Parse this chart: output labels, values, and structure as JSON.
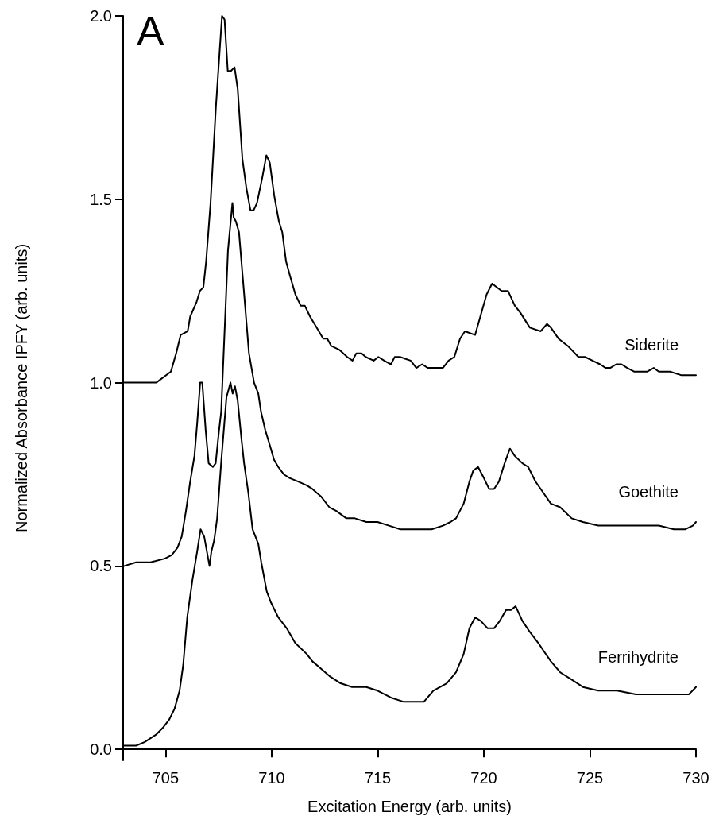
{
  "chart_data": {
    "type": "line",
    "title": "A",
    "xlabel": "Excitation Energy (arb. units)",
    "ylabel": "Normalized Absorbance IPFY (arb. units)",
    "xlim": [
      703,
      730
    ],
    "ylim": [
      -0.03,
      2.0
    ],
    "xticks": [
      705,
      710,
      715,
      720,
      725,
      730
    ],
    "yticks": [
      {
        "value": 0,
        "label": "0.0"
      },
      0.5,
      {
        "value": 1,
        "label": "1.0"
      },
      1.5,
      {
        "value": 2,
        "label": "2.0"
      }
    ],
    "series": [
      {
        "name": "Siderite",
        "color": "#000000",
        "x": [
          703.06,
          704.56,
          705.25,
          705.5,
          705.71,
          706.04,
          706.16,
          706.46,
          706.62,
          706.78,
          706.91,
          707.12,
          707.37,
          707.66,
          707.78,
          707.93,
          708.08,
          708.25,
          708.4,
          708.62,
          708.81,
          709.0,
          709.15,
          709.31,
          709.56,
          709.75,
          709.91,
          710.12,
          710.34,
          710.5,
          710.68,
          710.87,
          711.12,
          711.37,
          711.56,
          711.81,
          712.12,
          712.43,
          712.62,
          712.81,
          713.18,
          713.56,
          713.81,
          713.99,
          714.24,
          714.43,
          714.81,
          715.03,
          715.3,
          715.62,
          715.8,
          716.05,
          716.55,
          716.82,
          717.09,
          717.36,
          717.62,
          717.86,
          718.07,
          718.34,
          718.61,
          718.88,
          719.11,
          719.59,
          720.13,
          720.39,
          720.84,
          721.14,
          721.46,
          721.73,
          722.17,
          722.68,
          722.98,
          723.16,
          723.52,
          723.96,
          724.46,
          724.77,
          725.12,
          725.48,
          725.74,
          725.96,
          726.24,
          726.49,
          726.76,
          727.08,
          727.35,
          727.71,
          728.01,
          728.25,
          728.78,
          729.32,
          729.67,
          730.0
        ],
        "values": [
          1.0,
          1.0,
          1.03,
          1.08,
          1.13,
          1.14,
          1.18,
          1.22,
          1.25,
          1.26,
          1.33,
          1.49,
          1.75,
          2.0,
          1.99,
          1.85,
          1.85,
          1.86,
          1.8,
          1.61,
          1.53,
          1.47,
          1.47,
          1.49,
          1.56,
          1.62,
          1.6,
          1.51,
          1.44,
          1.41,
          1.33,
          1.29,
          1.24,
          1.21,
          1.21,
          1.18,
          1.15,
          1.12,
          1.12,
          1.1,
          1.09,
          1.07,
          1.06,
          1.08,
          1.08,
          1.07,
          1.06,
          1.07,
          1.06,
          1.05,
          1.07,
          1.07,
          1.06,
          1.04,
          1.05,
          1.04,
          1.04,
          1.04,
          1.04,
          1.06,
          1.07,
          1.12,
          1.14,
          1.13,
          1.24,
          1.27,
          1.25,
          1.25,
          1.21,
          1.19,
          1.15,
          1.14,
          1.16,
          1.15,
          1.12,
          1.1,
          1.07,
          1.07,
          1.06,
          1.05,
          1.04,
          1.04,
          1.05,
          1.05,
          1.04,
          1.03,
          1.03,
          1.03,
          1.04,
          1.03,
          1.03,
          1.02,
          1.02,
          1.02
        ]
      },
      {
        "name": "Goethite",
        "color": "#000000",
        "x": [
          703.05,
          703.61,
          704.29,
          704.96,
          705.29,
          705.56,
          705.76,
          705.96,
          706.16,
          706.36,
          706.49,
          706.63,
          706.73,
          706.89,
          707.03,
          707.23,
          707.36,
          707.52,
          707.62,
          707.81,
          707.94,
          708.15,
          708.21,
          708.31,
          708.46,
          708.69,
          708.93,
          709.17,
          709.37,
          709.5,
          709.7,
          709.91,
          710.11,
          710.31,
          710.57,
          710.84,
          711.25,
          711.65,
          711.92,
          712.32,
          712.72,
          713.05,
          713.52,
          713.92,
          714.46,
          714.99,
          715.53,
          716.07,
          716.47,
          717.0,
          717.54,
          718.07,
          718.43,
          718.69,
          719.05,
          719.32,
          719.5,
          719.73,
          720.0,
          720.25,
          720.48,
          720.71,
          720.98,
          721.23,
          721.46,
          721.82,
          722.09,
          722.44,
          722.8,
          723.16,
          723.6,
          724.14,
          724.67,
          725.39,
          726.1,
          726.82,
          727.53,
          728.25,
          728.96,
          729.5,
          729.85,
          730.0
        ],
        "values": [
          0.5,
          0.51,
          0.51,
          0.52,
          0.53,
          0.55,
          0.58,
          0.65,
          0.73,
          0.8,
          0.89,
          1.0,
          1.0,
          0.87,
          0.78,
          0.77,
          0.78,
          0.87,
          0.92,
          1.18,
          1.36,
          1.49,
          1.45,
          1.44,
          1.41,
          1.25,
          1.08,
          1.0,
          0.97,
          0.92,
          0.87,
          0.83,
          0.79,
          0.77,
          0.75,
          0.74,
          0.73,
          0.72,
          0.71,
          0.69,
          0.66,
          0.65,
          0.63,
          0.63,
          0.62,
          0.62,
          0.61,
          0.6,
          0.6,
          0.6,
          0.6,
          0.61,
          0.62,
          0.63,
          0.67,
          0.73,
          0.76,
          0.77,
          0.74,
          0.71,
          0.71,
          0.73,
          0.78,
          0.82,
          0.8,
          0.78,
          0.77,
          0.73,
          0.7,
          0.67,
          0.66,
          0.63,
          0.62,
          0.61,
          0.61,
          0.61,
          0.61,
          0.61,
          0.6,
          0.6,
          0.61,
          0.62
        ]
      },
      {
        "name": "Ferrihydrite",
        "color": "#000000",
        "x": [
          703.05,
          703.61,
          704.02,
          704.55,
          704.89,
          705.16,
          705.42,
          705.66,
          705.83,
          706.02,
          706.26,
          706.49,
          706.65,
          706.82,
          707.07,
          707.16,
          707.29,
          707.43,
          707.63,
          707.87,
          708.06,
          708.16,
          708.27,
          708.4,
          708.57,
          708.7,
          708.9,
          709.1,
          709.37,
          709.51,
          709.77,
          709.97,
          710.31,
          710.71,
          711.11,
          711.65,
          711.92,
          712.32,
          712.72,
          713.25,
          713.79,
          714.46,
          714.99,
          715.67,
          716.2,
          716.87,
          717.18,
          717.62,
          718.25,
          718.69,
          719.05,
          719.32,
          719.59,
          719.86,
          720.18,
          720.48,
          720.75,
          721.05,
          721.28,
          721.5,
          721.82,
          722.17,
          722.57,
          722.8,
          723.16,
          723.6,
          724.14,
          724.67,
          725.39,
          726.28,
          727.17,
          728.07,
          728.96,
          729.67,
          730.0
        ],
        "values": [
          0.01,
          0.01,
          0.02,
          0.04,
          0.06,
          0.08,
          0.11,
          0.16,
          0.23,
          0.36,
          0.46,
          0.54,
          0.6,
          0.58,
          0.5,
          0.54,
          0.57,
          0.63,
          0.79,
          0.96,
          1.0,
          0.97,
          0.99,
          0.95,
          0.85,
          0.78,
          0.7,
          0.6,
          0.56,
          0.51,
          0.43,
          0.4,
          0.36,
          0.33,
          0.29,
          0.26,
          0.24,
          0.22,
          0.2,
          0.18,
          0.17,
          0.17,
          0.16,
          0.14,
          0.13,
          0.13,
          0.13,
          0.16,
          0.18,
          0.21,
          0.26,
          0.33,
          0.36,
          0.35,
          0.33,
          0.33,
          0.35,
          0.38,
          0.38,
          0.39,
          0.35,
          0.32,
          0.29,
          0.27,
          0.24,
          0.21,
          0.19,
          0.17,
          0.16,
          0.16,
          0.15,
          0.15,
          0.15,
          0.15,
          0.17
        ]
      }
    ]
  }
}
